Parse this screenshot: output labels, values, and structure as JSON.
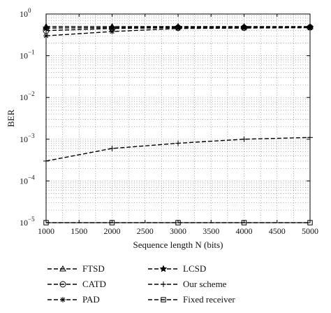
{
  "chart_data": {
    "type": "line",
    "xlabel": "Sequence length N (bits)",
    "ylabel": "BER",
    "x": [
      1000,
      2000,
      3000,
      4000,
      5000
    ],
    "xticks": [
      1000,
      1500,
      2000,
      2500,
      3000,
      3500,
      4000,
      4500,
      5000
    ],
    "xlim": [
      1000,
      5000
    ],
    "ylim": [
      1e-05,
      1
    ],
    "yscale": "log",
    "yticks": [
      {
        "value": 1e-05,
        "base": "10",
        "exp": "−5"
      },
      {
        "value": 0.0001,
        "base": "10",
        "exp": "−4"
      },
      {
        "value": 0.001,
        "base": "10",
        "exp": "−3"
      },
      {
        "value": 0.01,
        "base": "10",
        "exp": "−2"
      },
      {
        "value": 0.1,
        "base": "10",
        "exp": "−1"
      },
      {
        "value": 1,
        "base": "10",
        "exp": "0"
      }
    ],
    "grid": true,
    "legend_placement": "below",
    "series": [
      {
        "name": "FTSD",
        "marker": "triangle",
        "values": [
          0.5,
          0.5,
          0.5,
          0.5,
          0.5
        ]
      },
      {
        "name": "LCSD",
        "marker": "star",
        "values": [
          0.46,
          0.47,
          0.48,
          0.48,
          0.48
        ]
      },
      {
        "name": "CATD",
        "marker": "circle",
        "values": [
          0.4,
          0.45,
          0.47,
          0.47,
          0.48
        ]
      },
      {
        "name": "Our scheme",
        "marker": "plus",
        "values": [
          0.0003,
          0.0006,
          0.0008,
          0.001,
          0.0011
        ]
      },
      {
        "name": "PAD",
        "marker": "asterisk",
        "values": [
          0.3,
          0.38,
          0.45,
          0.46,
          0.47
        ]
      },
      {
        "name": "Fixed receiver",
        "marker": "square",
        "values": [
          1e-05,
          1e-05,
          1e-05,
          1e-05,
          1e-05
        ]
      }
    ]
  }
}
